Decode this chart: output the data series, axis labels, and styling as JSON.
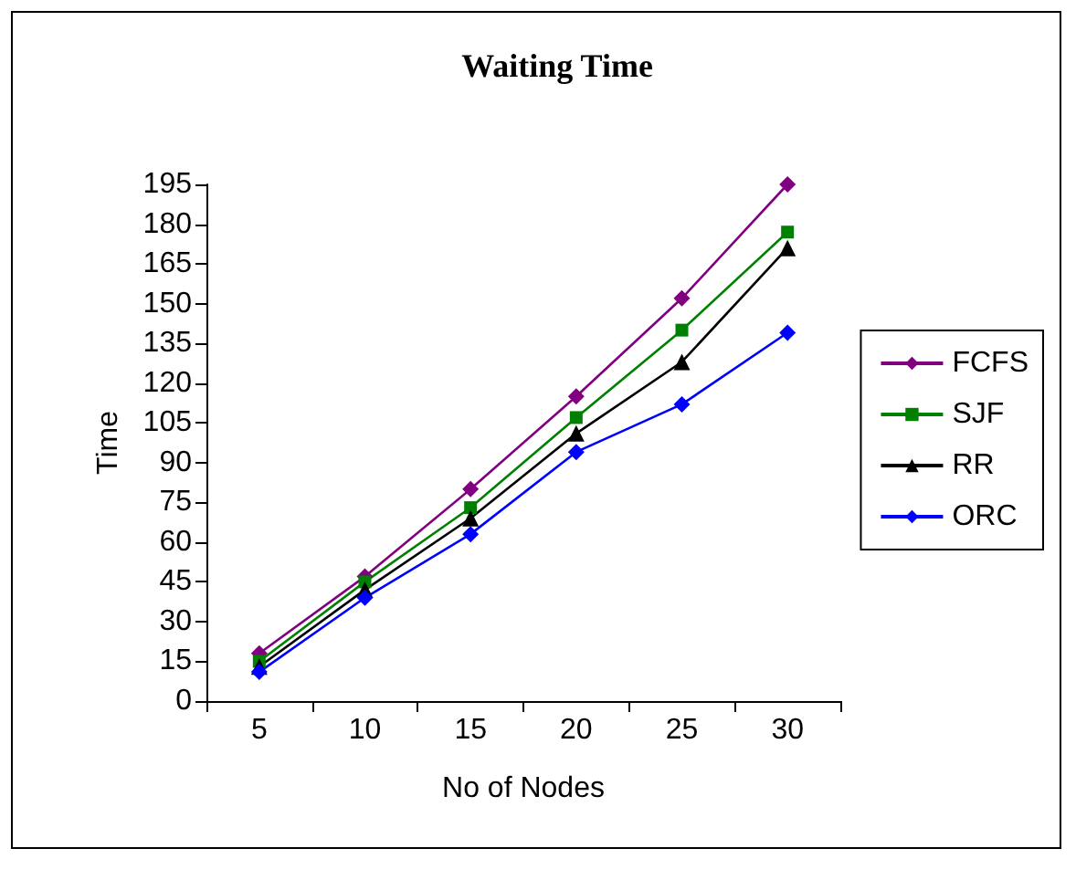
{
  "chart_data": {
    "type": "line",
    "title": "Waiting Time",
    "xlabel": "No of Nodes",
    "ylabel": "Time",
    "categories": [
      "5",
      "10",
      "15",
      "20",
      "25",
      "30"
    ],
    "series": [
      {
        "name": "FCFS",
        "color": "#800080",
        "marker": "diamond",
        "values": [
          18,
          47,
          80,
          115,
          152,
          195
        ]
      },
      {
        "name": "SJF",
        "color": "#008000",
        "marker": "square",
        "values": [
          15,
          45,
          73,
          107,
          140,
          177
        ]
      },
      {
        "name": "RR",
        "color": "#000000",
        "marker": "triangle",
        "values": [
          13,
          42,
          69,
          101,
          128,
          171
        ]
      },
      {
        "name": "ORC",
        "color": "#0000ff",
        "marker": "diamond",
        "values": [
          11,
          39,
          63,
          94,
          112,
          139
        ]
      }
    ],
    "ylim": [
      0,
      195
    ],
    "yticks": [
      0,
      15,
      30,
      45,
      60,
      75,
      90,
      105,
      120,
      135,
      150,
      165,
      180,
      195
    ],
    "grid": false,
    "legend": "right",
    "line_style": "solid"
  }
}
